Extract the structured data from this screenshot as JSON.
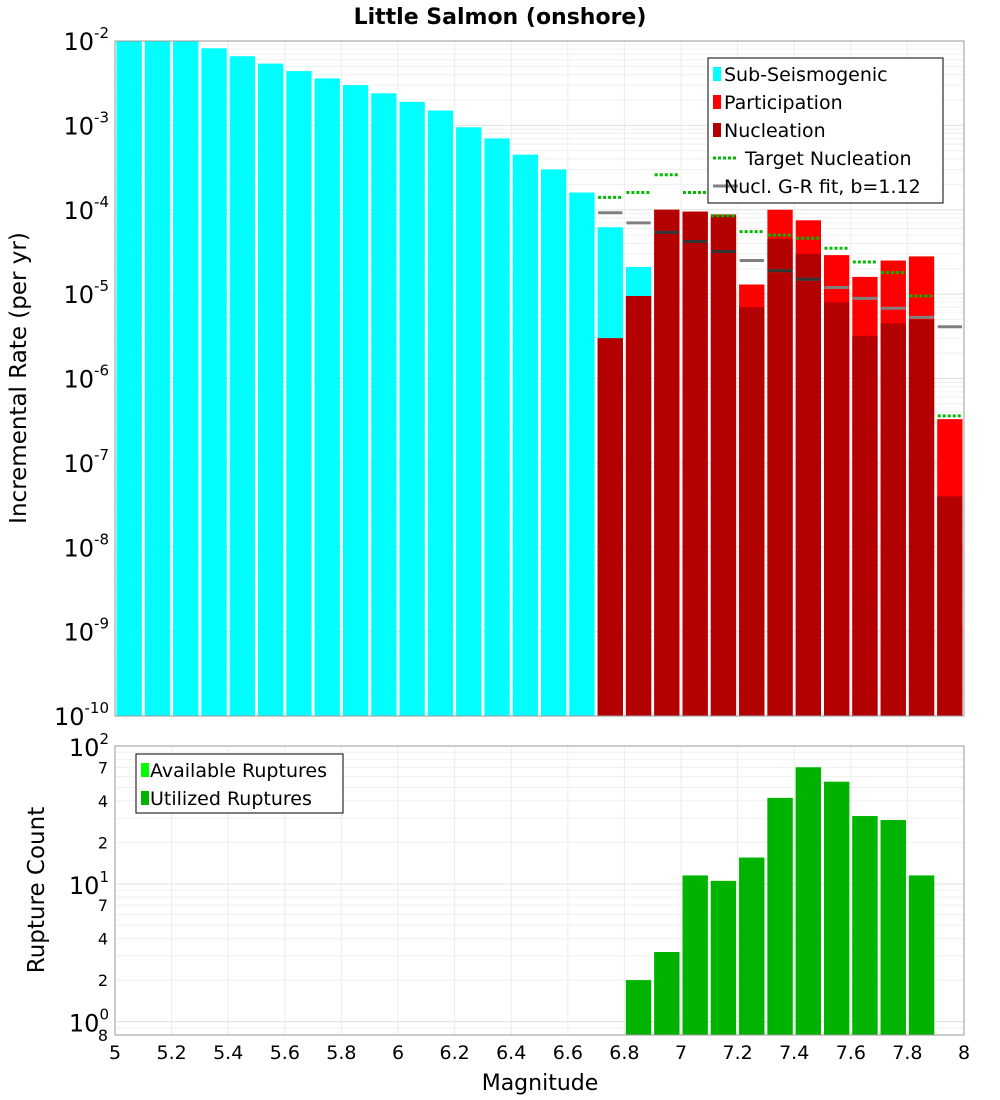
{
  "chart_data": [
    {
      "type": "bar",
      "panel": "top",
      "title": "Little Salmon (onshore)",
      "xlabel": "",
      "ylabel": "Incremental Rate (per yr)",
      "xlim": [
        5,
        8
      ],
      "ylim": [
        1e-10,
        0.01
      ],
      "yscale": "log",
      "grid": true,
      "legend_position": "top-right",
      "x": [
        5.05,
        5.15,
        5.25,
        5.35,
        5.45,
        5.55,
        5.65,
        5.75,
        5.85,
        5.95,
        6.05,
        6.15,
        6.25,
        6.35,
        6.45,
        6.55,
        6.65,
        6.75,
        6.85,
        6.95,
        7.05,
        7.15,
        7.25,
        7.35,
        7.45,
        7.55,
        7.65,
        7.75,
        7.85,
        7.95
      ],
      "series": [
        {
          "name": "Sub-Seismogenic",
          "color": "#00ffff",
          "values": [
            0.01,
            0.01,
            0.01,
            0.0082,
            0.0066,
            0.0054,
            0.0044,
            0.0036,
            0.003,
            0.0024,
            0.0019,
            0.0015,
            0.00095,
            0.0007,
            0.00045,
            0.0003,
            0.00016,
            6.2e-05,
            2.1e-05,
            null,
            null,
            null,
            null,
            null,
            null,
            null,
            null,
            null,
            null,
            null
          ]
        },
        {
          "name": "Participation",
          "color": "#ff0000",
          "values": [
            null,
            null,
            null,
            null,
            null,
            null,
            null,
            null,
            null,
            null,
            null,
            null,
            null,
            null,
            null,
            null,
            null,
            3e-06,
            9.5e-06,
            0.0001,
            9.5e-05,
            8.8e-05,
            1.3e-05,
            0.0001,
            7.5e-05,
            2.9e-05,
            1.6e-05,
            2.5e-05,
            2.8e-05,
            3.3e-07
          ]
        },
        {
          "name": "Nucleation",
          "color": "#b30000",
          "values": [
            null,
            null,
            null,
            null,
            null,
            null,
            null,
            null,
            null,
            null,
            null,
            null,
            null,
            null,
            null,
            null,
            null,
            3e-06,
            9.5e-06,
            0.0001,
            9.5e-05,
            8.5e-05,
            7e-06,
            4.5e-05,
            3e-05,
            8e-06,
            3.2e-06,
            4.5e-06,
            5e-06,
            4e-08
          ]
        },
        {
          "name": "Target Nucleation",
          "color": "#00bb00",
          "style": "dotted",
          "values": [
            null,
            null,
            null,
            null,
            null,
            null,
            null,
            null,
            null,
            null,
            null,
            null,
            null,
            null,
            null,
            null,
            null,
            0.00014,
            0.00016,
            0.00026,
            0.00016,
            8.5e-05,
            5.5e-05,
            5e-05,
            4.6e-05,
            3.5e-05,
            2.4e-05,
            1.8e-05,
            9.5e-06,
            3.6e-07
          ]
        },
        {
          "name": "Nucl. G-R fit, b=1.12",
          "color": "#808080",
          "style": "solid",
          "values": [
            null,
            null,
            null,
            null,
            null,
            null,
            null,
            null,
            null,
            null,
            null,
            null,
            null,
            null,
            null,
            null,
            null,
            9.2e-05,
            7e-05,
            5.4e-05,
            4.2e-05,
            3.2e-05,
            2.5e-05,
            1.9e-05,
            1.5e-05,
            1.2e-05,
            8.9e-06,
            6.8e-06,
            5.3e-06,
            4.1e-06
          ]
        }
      ],
      "y_ticks": [
        {
          "base": "10",
          "exp": "-10"
        },
        {
          "base": "10",
          "exp": "-9"
        },
        {
          "base": "10",
          "exp": "-8"
        },
        {
          "base": "10",
          "exp": "-7"
        },
        {
          "base": "10",
          "exp": "-6"
        },
        {
          "base": "10",
          "exp": "-5"
        },
        {
          "base": "10",
          "exp": "-4"
        },
        {
          "base": "10",
          "exp": "-3"
        },
        {
          "base": "10",
          "exp": "-2"
        }
      ]
    },
    {
      "type": "bar",
      "panel": "bottom",
      "title": "",
      "xlabel": "Magnitude",
      "ylabel": "Rupture Count",
      "xlim": [
        5,
        8
      ],
      "ylim": [
        0.8,
        100
      ],
      "yscale": "log",
      "grid": true,
      "legend_position": "top-left",
      "x_tick_labels": [
        "5",
        "5.2",
        "5.4",
        "5.6",
        "5.8",
        "6",
        "6.2",
        "6.4",
        "6.6",
        "6.8",
        "7",
        "7.2",
        "7.4",
        "7.6",
        "7.8",
        "8"
      ],
      "x": [
        6.85,
        6.95,
        7.05,
        7.15,
        7.25,
        7.35,
        7.45,
        7.55,
        7.65,
        7.75,
        7.85
      ],
      "series": [
        {
          "name": "Available Ruptures",
          "color": "#00ff00",
          "values": [
            2,
            3.2,
            11.5,
            10.5,
            15.5,
            42,
            70,
            55,
            31,
            29,
            11.5
          ]
        },
        {
          "name": "Utilized Ruptures",
          "color": "#00b300",
          "values": [
            2,
            3.2,
            11.5,
            10.5,
            15.5,
            42,
            70,
            55,
            31,
            29,
            11.5
          ]
        }
      ],
      "y_ticks": [
        {
          "value": 1,
          "base": "10",
          "exp": "0"
        },
        {
          "value": 10,
          "base": "10",
          "exp": "1"
        },
        {
          "value": 100,
          "base": "10",
          "exp": "2"
        }
      ],
      "y_minor_labels": [
        {
          "value": 0.8,
          "label": "8"
        },
        {
          "value": 2,
          "label": "2"
        },
        {
          "value": 4,
          "label": "4"
        },
        {
          "value": 7,
          "label": "7"
        },
        {
          "value": 20,
          "label": "2"
        },
        {
          "value": 40,
          "label": "4"
        },
        {
          "value": 70,
          "label": "7"
        }
      ]
    }
  ]
}
